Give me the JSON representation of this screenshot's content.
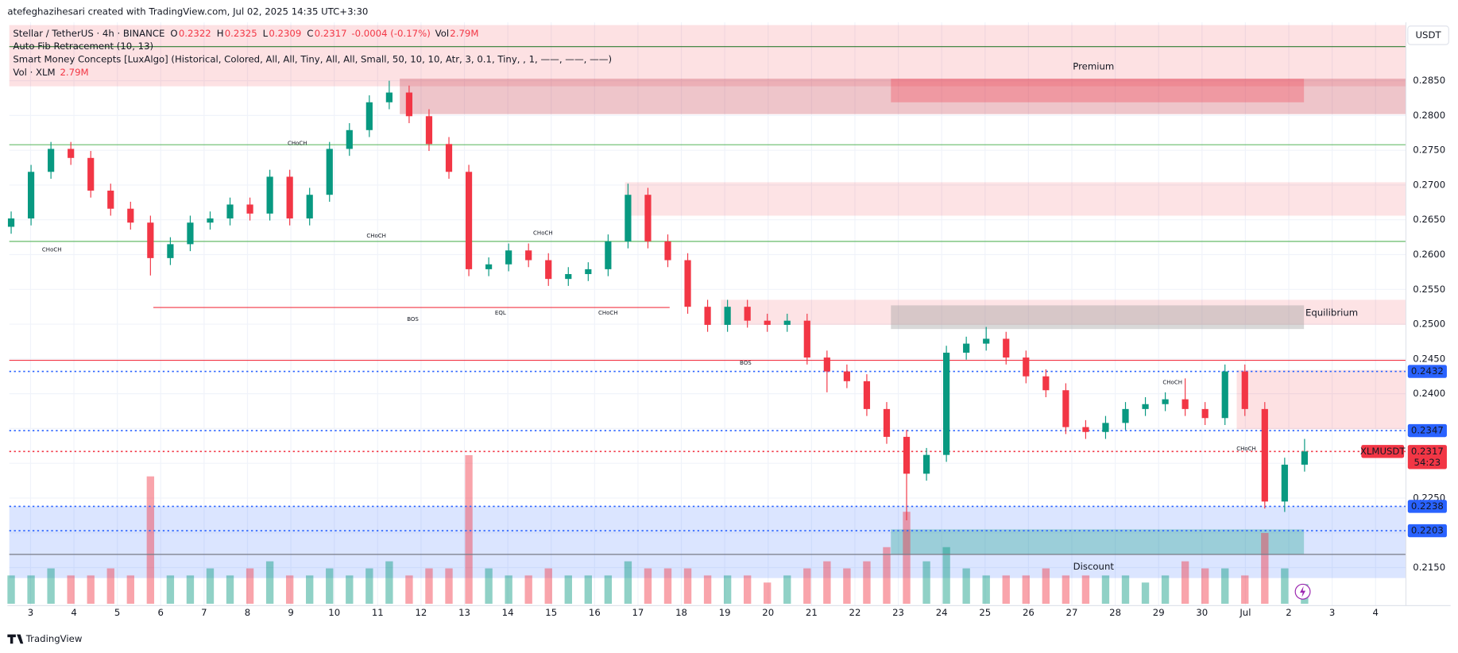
{
  "header": {
    "author_line": "atefeghazihesari created with TradingView.com, Jul 02, 2025 14:35 UTC+3:30",
    "symbol": "Stellar / TetherUS · 4h · BINANCE",
    "ohlc": [
      {
        "key": "O",
        "value": "0.2322"
      },
      {
        "key": "H",
        "value": "0.2325"
      },
      {
        "key": "L",
        "value": "0.2309"
      },
      {
        "key": "C",
        "value": "0.2317"
      }
    ],
    "change": "-0.0004 (-0.17%)",
    "vol_key": "Vol",
    "vol_value": "2.79M",
    "indicators": [
      "Auto Fib Retracement (10, 13)",
      "Smart Money Concepts [LuxAlgo] (Historical, Colored, All, All, Tiny, All, All, Small, 50, 10, 10, Atr, 3, 0.1, Tiny, , 1, ——, ——, ——)"
    ],
    "volume_label": "Vol · XLM",
    "volume_value": "2.79M"
  },
  "currency": "USDT",
  "footer": "TradingView",
  "chart_data": {
    "type": "candlestick",
    "symbol_label": "XLMUSDT",
    "countdown": "54:23",
    "up_color": "#089981",
    "down_color": "#f23645",
    "open": [
      0.264,
      0.2652,
      0.2719,
      0.2752,
      0.2739,
      0.2692,
      0.2666,
      0.2646,
      0.2595,
      0.2615,
      0.2646,
      0.2652,
      0.2672,
      0.2659,
      0.2712,
      0.2652,
      0.2686,
      0.2752,
      0.2779,
      0.2819,
      0.2833,
      0.2799,
      0.2759,
      0.2719,
      0.2579,
      0.2586,
      0.2606,
      0.2592,
      0.2565,
      0.2572,
      0.2579,
      0.2619,
      0.2686,
      0.2619,
      0.2592,
      0.2525,
      0.2499,
      0.2525,
      0.2505,
      0.2499,
      0.2505,
      0.2452,
      0.2432,
      0.2418,
      0.2378,
      0.2338,
      0.2285,
      0.2312,
      0.2459,
      0.2472,
      0.2479,
      0.2452,
      0.2425,
      0.2405,
      0.2352,
      0.2345,
      0.2358,
      0.2378,
      0.2385,
      0.2392,
      0.2378,
      0.2365,
      0.2432,
      0.2378,
      0.2245,
      0.2298
    ],
    "high": [
      0.2662,
      0.2729,
      0.2762,
      0.2762,
      0.2749,
      0.2702,
      0.2676,
      0.2656,
      0.2625,
      0.2656,
      0.2662,
      0.2682,
      0.2682,
      0.2722,
      0.2722,
      0.2696,
      0.2762,
      0.2789,
      0.2829,
      0.285,
      0.2843,
      0.2809,
      0.2769,
      0.2729,
      0.2596,
      0.2616,
      0.2616,
      0.2602,
      0.2582,
      0.2589,
      0.2629,
      0.2702,
      0.2696,
      0.2629,
      0.2602,
      0.2535,
      0.2535,
      0.2535,
      0.2515,
      0.2515,
      0.2515,
      0.2462,
      0.2442,
      0.2428,
      0.2388,
      0.2348,
      0.2322,
      0.2469,
      0.2482,
      0.2496,
      0.2489,
      0.2462,
      0.2435,
      0.2415,
      0.2362,
      0.2368,
      0.2388,
      0.2395,
      0.2402,
      0.2422,
      0.2388,
      0.2442,
      0.2442,
      0.2388,
      0.2308,
      0.2335
    ],
    "low": [
      0.263,
      0.2642,
      0.2709,
      0.2729,
      0.2682,
      0.2656,
      0.2636,
      0.257,
      0.2585,
      0.2605,
      0.2636,
      0.2642,
      0.2649,
      0.2649,
      0.2642,
      0.2642,
      0.2676,
      0.2742,
      0.2769,
      0.2809,
      0.2789,
      0.2749,
      0.2709,
      0.2569,
      0.2569,
      0.2576,
      0.2582,
      0.2555,
      0.2555,
      0.2562,
      0.2569,
      0.2609,
      0.2609,
      0.2582,
      0.2515,
      0.2489,
      0.2489,
      0.2495,
      0.2489,
      0.2489,
      0.2442,
      0.2402,
      0.2408,
      0.2368,
      0.2328,
      0.2218,
      0.2275,
      0.2302,
      0.2449,
      0.2462,
      0.2442,
      0.2415,
      0.2395,
      0.2342,
      0.2335,
      0.2335,
      0.2348,
      0.2368,
      0.2375,
      0.2368,
      0.2355,
      0.2355,
      0.2368,
      0.2235,
      0.223,
      0.2288
    ],
    "close": [
      0.2652,
      0.2719,
      0.2752,
      0.2739,
      0.2692,
      0.2666,
      0.2646,
      0.2595,
      0.2615,
      0.2646,
      0.2652,
      0.2672,
      0.2659,
      0.2712,
      0.2652,
      0.2686,
      0.2752,
      0.2779,
      0.2819,
      0.2833,
      0.2799,
      0.2759,
      0.2719,
      0.2579,
      0.2586,
      0.2606,
      0.2592,
      0.2565,
      0.2572,
      0.2579,
      0.2619,
      0.2686,
      0.2619,
      0.2592,
      0.2525,
      0.2499,
      0.2525,
      0.2505,
      0.2499,
      0.2505,
      0.2452,
      0.2432,
      0.2418,
      0.2378,
      0.2338,
      0.2285,
      0.2312,
      0.2459,
      0.2472,
      0.2479,
      0.2452,
      0.2425,
      0.2405,
      0.2352,
      0.2345,
      0.2358,
      0.2378,
      0.2385,
      0.2392,
      0.2378,
      0.2365,
      0.2432,
      0.2378,
      0.2245,
      0.2298,
      0.2317
    ],
    "volume": [
      4,
      4,
      5,
      4,
      4,
      5,
      4,
      18,
      4,
      4,
      5,
      4,
      5,
      6,
      4,
      4,
      5,
      4,
      5,
      6,
      4,
      5,
      5,
      21,
      5,
      4,
      4,
      5,
      4,
      4,
      4,
      6,
      5,
      5,
      5,
      4,
      4,
      4,
      3,
      4,
      5,
      6,
      5,
      6,
      8,
      13,
      6,
      8,
      5,
      4,
      4,
      4,
      5,
      4,
      4,
      4,
      4,
      3,
      4,
      6,
      5,
      5,
      4,
      10,
      5,
      2.79
    ],
    "ylim": [
      0.2098,
      0.293
    ],
    "yticks": [
      {
        "value": 0.215,
        "label": "0.2150"
      },
      {
        "value": 0.22,
        "label": "0.2200"
      },
      {
        "value": 0.225,
        "label": "0.2250"
      },
      {
        "value": 0.23,
        "label": "0.2300"
      },
      {
        "value": 0.235,
        "label": "0.2350"
      },
      {
        "value": 0.24,
        "label": "0.2400"
      },
      {
        "value": 0.245,
        "label": "0.2450"
      },
      {
        "value": 0.25,
        "label": "0.2500"
      },
      {
        "value": 0.255,
        "label": "0.2550"
      },
      {
        "value": 0.26,
        "label": "0.2600"
      },
      {
        "value": 0.265,
        "label": "0.2650"
      },
      {
        "value": 0.27,
        "label": "0.2700"
      },
      {
        "value": 0.275,
        "label": "0.2750"
      },
      {
        "value": 0.28,
        "label": "0.2800"
      },
      {
        "value": 0.285,
        "label": "0.2850"
      }
    ],
    "xlim": [
      -0.49,
      31.7
    ],
    "xticks": [
      {
        "value": 0,
        "label": "3"
      },
      {
        "value": 1,
        "label": "4"
      },
      {
        "value": 2,
        "label": "5"
      },
      {
        "value": 3,
        "label": "6"
      },
      {
        "value": 4,
        "label": "7"
      },
      {
        "value": 5,
        "label": "8"
      },
      {
        "value": 6,
        "label": "9"
      },
      {
        "value": 7,
        "label": "10"
      },
      {
        "value": 8,
        "label": "11"
      },
      {
        "value": 9,
        "label": "12"
      },
      {
        "value": 10,
        "label": "13"
      },
      {
        "value": 11,
        "label": "14"
      },
      {
        "value": 12,
        "label": "15"
      },
      {
        "value": 13,
        "label": "16"
      },
      {
        "value": 14,
        "label": "17"
      },
      {
        "value": 15,
        "label": "18"
      },
      {
        "value": 16,
        "label": "19"
      },
      {
        "value": 17,
        "label": "20"
      },
      {
        "value": 18,
        "label": "21"
      },
      {
        "value": 19,
        "label": "22"
      },
      {
        "value": 20,
        "label": "23"
      },
      {
        "value": 21,
        "label": "24"
      },
      {
        "value": 22,
        "label": "25"
      },
      {
        "value": 23,
        "label": "26"
      },
      {
        "value": 24,
        "label": "27"
      },
      {
        "value": 25,
        "label": "28"
      },
      {
        "value": 26,
        "label": "29"
      },
      {
        "value": 27,
        "label": "30"
      },
      {
        "value": 28,
        "label": "Jul"
      },
      {
        "value": 29,
        "label": "2"
      },
      {
        "value": 30,
        "label": "3"
      },
      {
        "value": 31,
        "label": "4"
      }
    ],
    "zones": [
      {
        "top": 0.293,
        "bottom": 0.2842,
        "from": -0.49,
        "to": 31.7,
        "color": "#f23645",
        "opacity": 0.15
      },
      {
        "top": 0.2853,
        "bottom": 0.2802,
        "from": 8.51,
        "to": 31.7,
        "color": "#c2303f",
        "opacity": 0.28
      },
      {
        "top": 0.2853,
        "bottom": 0.2819,
        "from": 19.83,
        "to": 29.35,
        "color": "#f23645",
        "opacity": 0.3
      },
      {
        "top": 0.2704,
        "bottom": 0.2656,
        "from": 13.7,
        "to": 31.7,
        "color": "#f23645",
        "opacity": 0.14
      },
      {
        "top": 0.2535,
        "bottom": 0.2499,
        "from": 15.91,
        "to": 31.7,
        "color": "#f23645",
        "opacity": 0.14
      },
      {
        "top": 0.2527,
        "bottom": 0.2493,
        "from": 19.83,
        "to": 29.35,
        "color": "#9e9e9e",
        "opacity": 0.4
      },
      {
        "top": 0.2434,
        "bottom": 0.2349,
        "from": 27.8,
        "to": 31.7,
        "color": "#f23645",
        "opacity": 0.15
      },
      {
        "top": 0.2238,
        "bottom": 0.2135,
        "from": -0.49,
        "to": 31.7,
        "color": "#2962ff",
        "opacity": 0.17
      },
      {
        "top": 0.2205,
        "bottom": 0.2169,
        "from": 19.83,
        "to": 29.35,
        "color": "#089981",
        "opacity": 0.3
      }
    ],
    "lines": [
      {
        "price": 0.2899,
        "from": -0.49,
        "to": 31.7,
        "color": "#2e7d32",
        "style": "solid"
      },
      {
        "price": 0.2758,
        "from": -0.49,
        "to": 31.7,
        "color": "#66bb6a",
        "style": "solid"
      },
      {
        "price": 0.2619,
        "from": -0.49,
        "to": 31.7,
        "color": "#66bb6a",
        "style": "solid"
      },
      {
        "price": 0.2448,
        "from": -0.49,
        "to": 31.7,
        "color": "#f23645",
        "style": "solid"
      },
      {
        "price": 0.2169,
        "from": -0.49,
        "to": 31.7,
        "color": "#787b86",
        "style": "solid"
      },
      {
        "price": 0.2524,
        "from": 2.83,
        "to": 14.73,
        "color": "#f23645",
        "style": "solid"
      },
      {
        "price": 0.2432,
        "from": -0.49,
        "to": 31.7,
        "color": "#2962ff",
        "style": "dotted"
      },
      {
        "price": 0.2347,
        "from": -0.49,
        "to": 31.7,
        "color": "#2962ff",
        "style": "dotted"
      },
      {
        "price": 0.2238,
        "from": -0.49,
        "to": 31.7,
        "color": "#2962ff",
        "style": "dotted"
      },
      {
        "price": 0.2203,
        "from": -0.49,
        "to": 31.7,
        "color": "#2962ff",
        "style": "dotted"
      },
      {
        "price": 0.2317,
        "from": -0.49,
        "to": 31.7,
        "color": "#f23645",
        "style": "dotted"
      }
    ],
    "price_labels": [
      {
        "value": 0.2432,
        "label": "0.2432"
      },
      {
        "value": 0.2347,
        "label": "0.2347"
      },
      {
        "value": 0.2238,
        "label": "0.2238"
      },
      {
        "value": 0.2203,
        "label": "0.2203"
      }
    ],
    "price_label_color": "#2962ff",
    "current_price": {
      "value": 0.2317,
      "label": "0.2317"
    },
    "annotations": [
      {
        "text": "CHoCH",
        "day": 0.49,
        "price": 0.2607,
        "color": "#f23645"
      },
      {
        "text": "CHoCH",
        "day": 6.15,
        "price": 0.276,
        "color": "#089981"
      },
      {
        "text": "CHoCH",
        "day": 7.97,
        "price": 0.2627,
        "color": "#f23645"
      },
      {
        "text": "CHoCH",
        "day": 11.81,
        "price": 0.2631,
        "color": "#089981"
      },
      {
        "text": "EQL",
        "day": 10.83,
        "price": 0.2516,
        "color": "#089981"
      },
      {
        "text": "CHoCH",
        "day": 13.31,
        "price": 0.2516,
        "color": "#f23645"
      },
      {
        "text": "BOS",
        "day": 8.81,
        "price": 0.2507,
        "color": "#f23645"
      },
      {
        "text": "BOS",
        "day": 16.48,
        "price": 0.2444,
        "color": "#f23645"
      },
      {
        "text": "CHoCH",
        "day": 26.32,
        "price": 0.2416,
        "color": "#089981"
      },
      {
        "text": "CHoCH",
        "day": 28.02,
        "price": 0.2321,
        "color": "#f23645"
      },
      {
        "text": "Premium",
        "day": 24.5,
        "price": 0.287,
        "color": "#f23645"
      },
      {
        "text": "Equilibrium",
        "day": 29.99,
        "price": 0.2516,
        "color": "#9e9e9e"
      },
      {
        "text": "Discount",
        "day": 24.5,
        "price": 0.2151,
        "color": "#2962ff"
      }
    ]
  }
}
